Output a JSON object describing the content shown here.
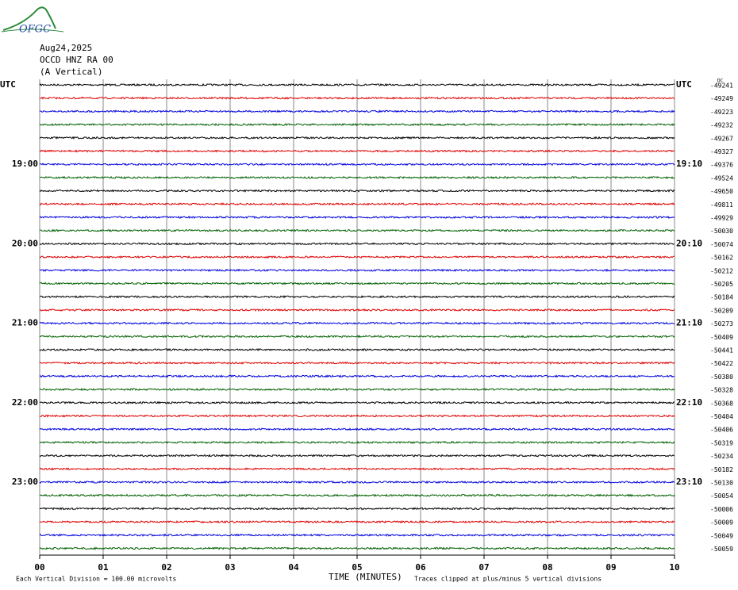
{
  "logo": "OFGC",
  "header": {
    "date": "Aug24,2025",
    "station": "OCCD HNZ RA 00",
    "component": "(A Vertical)"
  },
  "dc_label": "DC",
  "rows": [
    {
      "left": "UTC",
      "right": "UTC",
      "offset": "-49241"
    },
    {
      "left": null,
      "right": null,
      "offset": "-49249"
    },
    {
      "left": null,
      "right": null,
      "offset": "-49223"
    },
    {
      "left": null,
      "right": null,
      "offset": "-49232"
    },
    {
      "left": null,
      "right": null,
      "offset": "-49267"
    },
    {
      "left": null,
      "right": null,
      "offset": "-49327"
    },
    {
      "left": "19:00",
      "right": "19:10",
      "offset": "-49376"
    },
    {
      "left": null,
      "right": null,
      "offset": "-49524"
    },
    {
      "left": null,
      "right": null,
      "offset": "-49650"
    },
    {
      "left": null,
      "right": null,
      "offset": "-49811"
    },
    {
      "left": null,
      "right": null,
      "offset": "-49929"
    },
    {
      "left": null,
      "right": null,
      "offset": "-50030"
    },
    {
      "left": "20:00",
      "right": "20:10",
      "offset": "-50074"
    },
    {
      "left": null,
      "right": null,
      "offset": "-50162"
    },
    {
      "left": null,
      "right": null,
      "offset": "-50212"
    },
    {
      "left": null,
      "right": null,
      "offset": "-50205"
    },
    {
      "left": null,
      "right": null,
      "offset": "-50184"
    },
    {
      "left": null,
      "right": null,
      "offset": "-50209"
    },
    {
      "left": "21:00",
      "right": "21:10",
      "offset": "-50273"
    },
    {
      "left": null,
      "right": null,
      "offset": "-50409"
    },
    {
      "left": null,
      "right": null,
      "offset": "-50441"
    },
    {
      "left": null,
      "right": null,
      "offset": "-50422"
    },
    {
      "left": null,
      "right": null,
      "offset": "-50380"
    },
    {
      "left": null,
      "right": null,
      "offset": "-50328"
    },
    {
      "left": "22:00",
      "right": "22:10",
      "offset": "-50368"
    },
    {
      "left": null,
      "right": null,
      "offset": "-50404"
    },
    {
      "left": null,
      "right": null,
      "offset": "-50406"
    },
    {
      "left": null,
      "right": null,
      "offset": "-50319"
    },
    {
      "left": null,
      "right": null,
      "offset": "-50234"
    },
    {
      "left": null,
      "right": null,
      "offset": "-50182"
    },
    {
      "left": "23:00",
      "right": "23:10",
      "offset": "-50130"
    },
    {
      "left": null,
      "right": null,
      "offset": "-50054"
    },
    {
      "left": null,
      "right": null,
      "offset": "-50006"
    },
    {
      "left": null,
      "right": null,
      "offset": "-50009"
    },
    {
      "left": null,
      "right": null,
      "offset": "-50049"
    },
    {
      "left": null,
      "right": null,
      "offset": "-50059"
    }
  ],
  "trace_colors": [
    "#000000",
    "#e00000",
    "#0000e0",
    "#006000"
  ],
  "x_ticks": [
    "00",
    "01",
    "02",
    "03",
    "04",
    "05",
    "06",
    "07",
    "08",
    "09",
    "10"
  ],
  "x_label": "TIME (MINUTES)",
  "footer": {
    "scale": "Each Vertical Division =  100.00 microvolts",
    "clip": "Traces clipped at plus/minus 5 vertical divisions"
  }
}
